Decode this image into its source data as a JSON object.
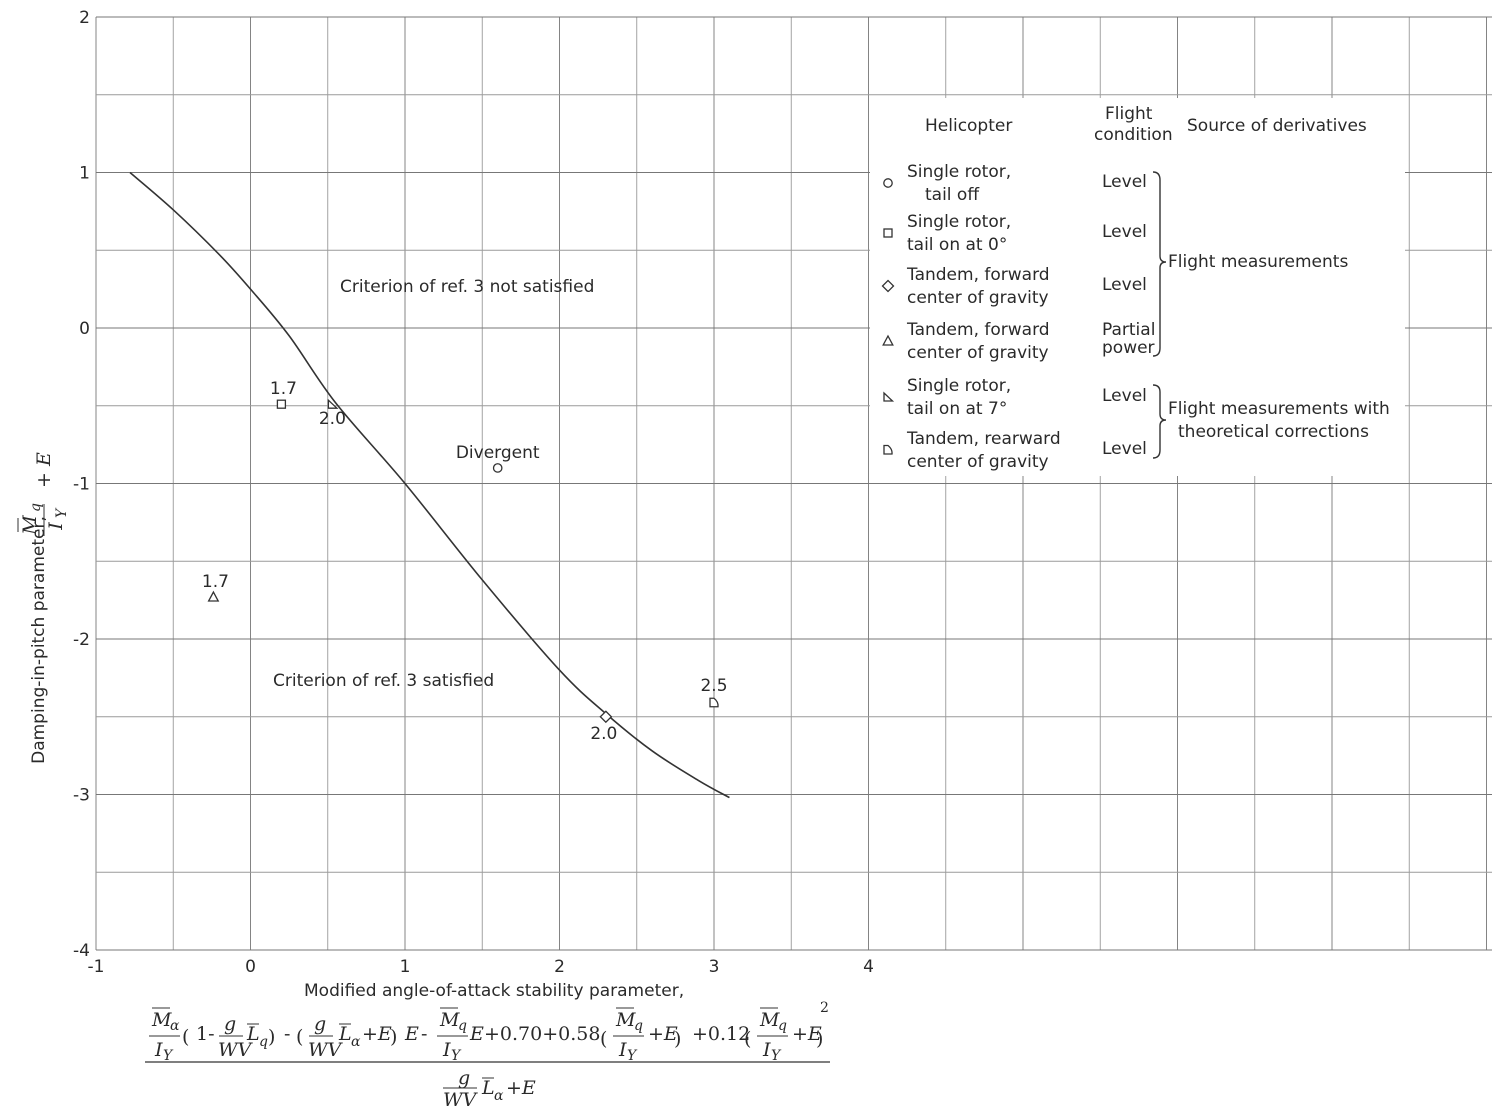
{
  "chart_data": {
    "type": "scatter",
    "xlabel": "Modified angle-of-attack stability parameter,",
    "ylabel": "Damping-in-pitch parameter,",
    "xlim": [
      -1,
      8.7
    ],
    "ylim": [
      -4,
      2
    ],
    "x_ticks": [
      "-1",
      "0",
      "1",
      "2",
      "3",
      "4"
    ],
    "y_ticks": [
      "2",
      "1",
      "0",
      "-1",
      "-2",
      "-3",
      "-4"
    ],
    "grid": true,
    "boundary_curve": {
      "x": [
        -0.78,
        -0.5,
        -0.2,
        0.0,
        0.25,
        0.55,
        1.0,
        1.5,
        2.0,
        2.3,
        2.6,
        2.9,
        3.1
      ],
      "y": [
        1.0,
        0.76,
        0.47,
        0.25,
        -0.05,
        -0.48,
        -1.0,
        -1.62,
        -2.2,
        -2.48,
        -2.72,
        -2.91,
        -3.02
      ]
    },
    "points": [
      {
        "marker": "circle",
        "x": 1.6,
        "y": -0.9,
        "label": "Divergent"
      },
      {
        "marker": "square",
        "x": 0.2,
        "y": -0.49,
        "label": "1.7"
      },
      {
        "marker": "diamond",
        "x": 2.3,
        "y": -2.5,
        "label": "2.0"
      },
      {
        "marker": "triangle",
        "x": -0.24,
        "y": -1.73,
        "label": "1.7"
      },
      {
        "marker": "tri-right",
        "x": 0.53,
        "y": -0.49,
        "label": "2.0"
      },
      {
        "marker": "d-shape",
        "x": 3.0,
        "y": -2.41,
        "label": "2.5"
      }
    ],
    "regions": [
      "Criterion of ref. 3 not satisfied",
      "Criterion of ref. 3 satisfied"
    ],
    "legend": {
      "headers": {
        "helicopter": "Helicopter",
        "flight_1": "Flight",
        "flight_2": "condition",
        "source": "Source of derivatives"
      },
      "entries": [
        {
          "marker": "circle",
          "line1": "Single rotor,",
          "line2": "tail off",
          "condition1": "Level",
          "condition2": ""
        },
        {
          "marker": "square",
          "line1": "Single rotor,",
          "line2": "tail on at 0°",
          "condition1": "Level",
          "condition2": ""
        },
        {
          "marker": "diamond",
          "line1": "Tandem, forward",
          "line2": "center of gravity",
          "condition1": "Level",
          "condition2": ""
        },
        {
          "marker": "triangle",
          "line1": "Tandem, forward",
          "line2": "center of gravity",
          "condition1": "Partial",
          "condition2": "power"
        },
        {
          "marker": "tri-right",
          "line1": "Single rotor,",
          "line2": "tail on at 7°",
          "condition1": "Level",
          "condition2": ""
        },
        {
          "marker": "d-shape",
          "line1": "Tandem, rearward",
          "line2": "center of gravity",
          "condition1": "Level",
          "condition2": ""
        }
      ],
      "groups": [
        {
          "line1": "Flight measurements",
          "line2": ""
        },
        {
          "line1": "Flight measurements with",
          "line2": "theoretical corrections"
        }
      ]
    }
  }
}
